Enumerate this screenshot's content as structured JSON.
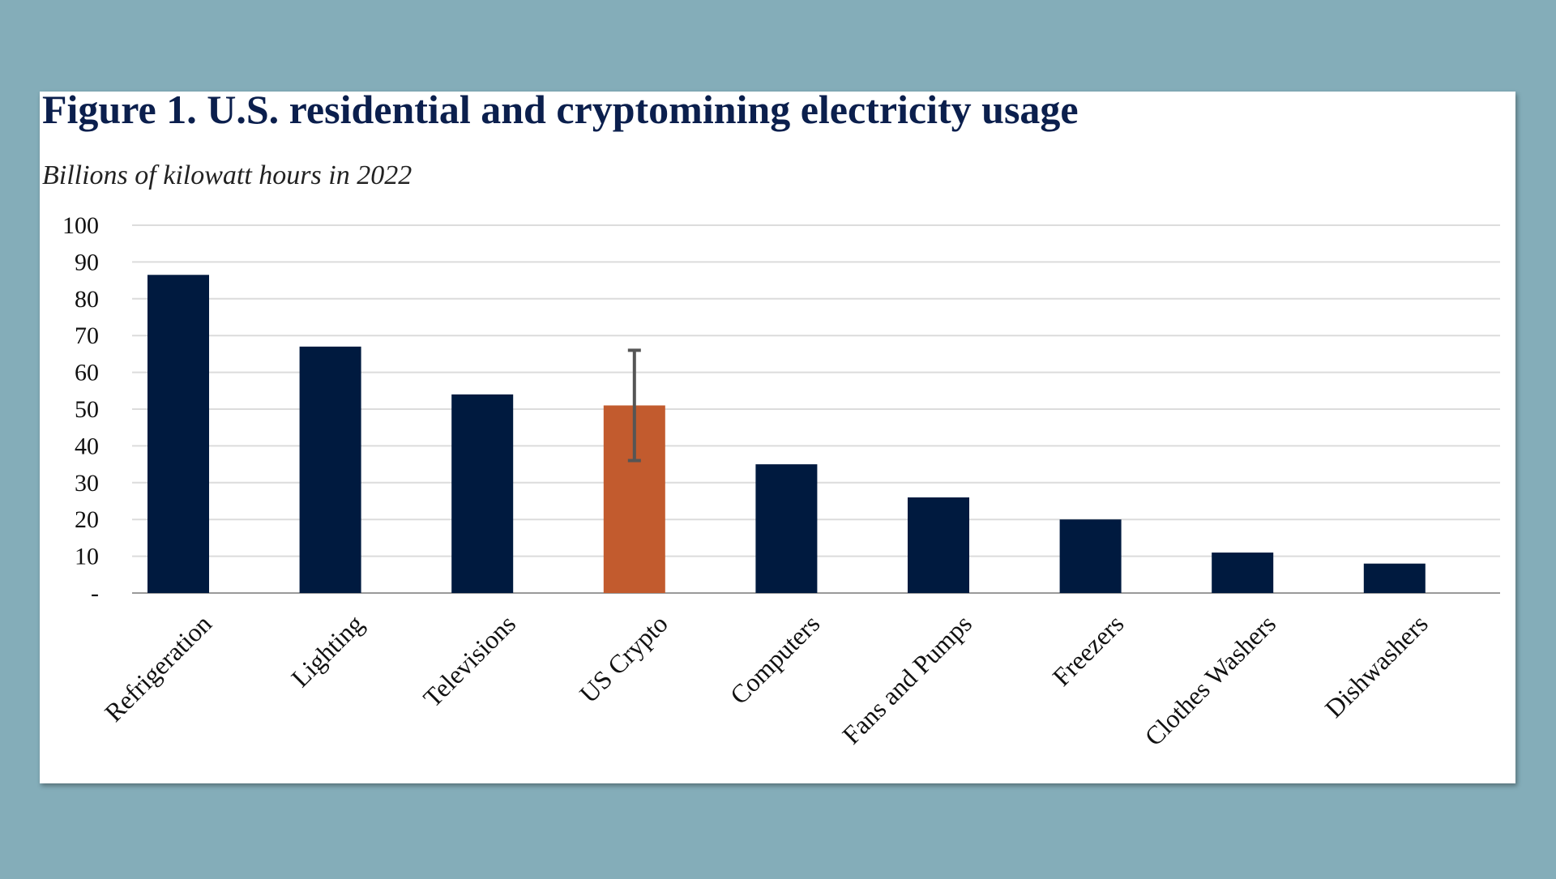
{
  "chart_data": {
    "type": "bar",
    "title": "Figure 1. U.S. residential and cryptomining electricity usage",
    "subtitle": "Billions of kilowatt hours in 2022",
    "categories": [
      "Refrigeration",
      "Lighting",
      "Televisions",
      "US Crypto",
      "Computers",
      "Fans and Pumps",
      "Freezers",
      "Clothes Washers",
      "Dishwashers"
    ],
    "values": [
      86.5,
      67,
      54,
      51,
      35,
      26,
      20,
      11,
      8
    ],
    "errors": [
      null,
      null,
      null,
      15,
      null,
      null,
      null,
      null,
      null
    ],
    "colors": [
      "#001a3f",
      "#001a3f",
      "#001a3f",
      "#c25b2e",
      "#001a3f",
      "#001a3f",
      "#001a3f",
      "#001a3f",
      "#001a3f"
    ],
    "ylim": [
      0,
      100
    ],
    "yticks": [
      {
        "value": 0,
        "label": "-"
      },
      10,
      20,
      30,
      40,
      50,
      60,
      70,
      80,
      90,
      100
    ],
    "grid": true
  }
}
